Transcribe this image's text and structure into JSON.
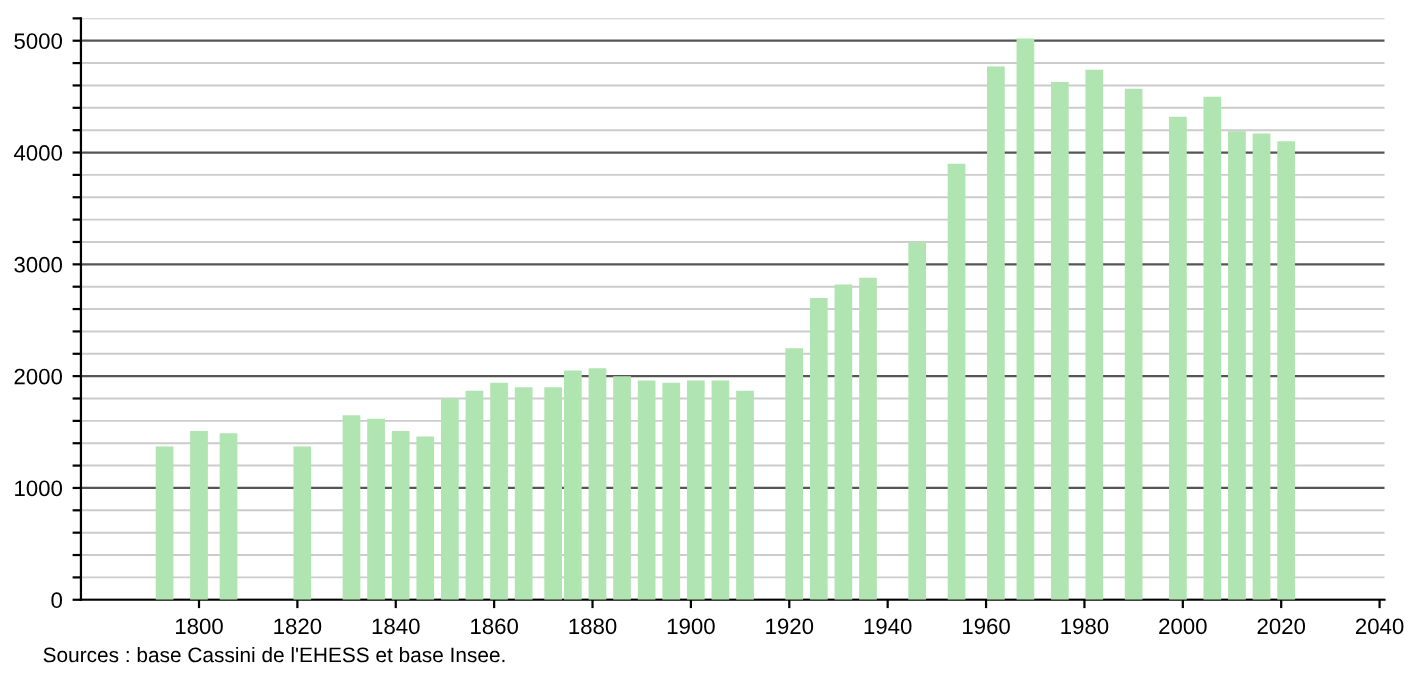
{
  "chart_data": {
    "type": "bar",
    "x": [
      1793,
      1800,
      1806,
      1821,
      1831,
      1836,
      1841,
      1846,
      1851,
      1856,
      1861,
      1866,
      1872,
      1876,
      1881,
      1886,
      1891,
      1896,
      1901,
      1906,
      1911,
      1921,
      1926,
      1931,
      1936,
      1946,
      1954,
      1962,
      1968,
      1975,
      1982,
      1990,
      1999,
      2006,
      2011,
      2016,
      2021
    ],
    "values": [
      1370,
      1510,
      1490,
      1370,
      1650,
      1620,
      1510,
      1460,
      1800,
      1870,
      1940,
      1900,
      1900,
      2050,
      2070,
      2000,
      1960,
      1940,
      1960,
      1960,
      1870,
      2250,
      2700,
      2820,
      2880,
      3200,
      3900,
      4770,
      5020,
      4630,
      4740,
      4570,
      4320,
      4500,
      4190,
      4170,
      4100
    ],
    "color": "#b0e4b0",
    "xlim": [
      1776,
      2041
    ],
    "xticks": [
      1800,
      1820,
      1840,
      1860,
      1880,
      1900,
      1920,
      1940,
      1960,
      1980,
      2000,
      2020,
      2040
    ],
    "ylim": [
      0,
      5200
    ],
    "yticks": [
      0,
      {
        "value": 200,
        "label": null
      },
      {
        "value": 400,
        "label": null
      },
      {
        "value": 600,
        "label": null
      },
      {
        "value": 800,
        "label": null
      },
      1000,
      {
        "value": 1200,
        "label": null
      },
      {
        "value": 1400,
        "label": null
      },
      {
        "value": 1600,
        "label": null
      },
      {
        "value": 1800,
        "label": null
      },
      2000,
      {
        "value": 2200,
        "label": null
      },
      {
        "value": 2400,
        "label": null
      },
      {
        "value": 2600,
        "label": null
      },
      {
        "value": 2800,
        "label": null
      },
      3000,
      {
        "value": 3200,
        "label": null
      },
      {
        "value": 3400,
        "label": null
      },
      {
        "value": 3600,
        "label": null
      },
      {
        "value": 3800,
        "label": null
      },
      4000,
      {
        "value": 4200,
        "label": null
      },
      {
        "value": 4400,
        "label": null
      },
      {
        "value": 4600,
        "label": null
      },
      {
        "value": 4800,
        "label": null
      },
      5000,
      {
        "value": 5200,
        "label": null
      }
    ],
    "grid": "y",
    "annotations": [
      "Sources : base Cassini de l'EHESS et base Insee."
    ]
  }
}
